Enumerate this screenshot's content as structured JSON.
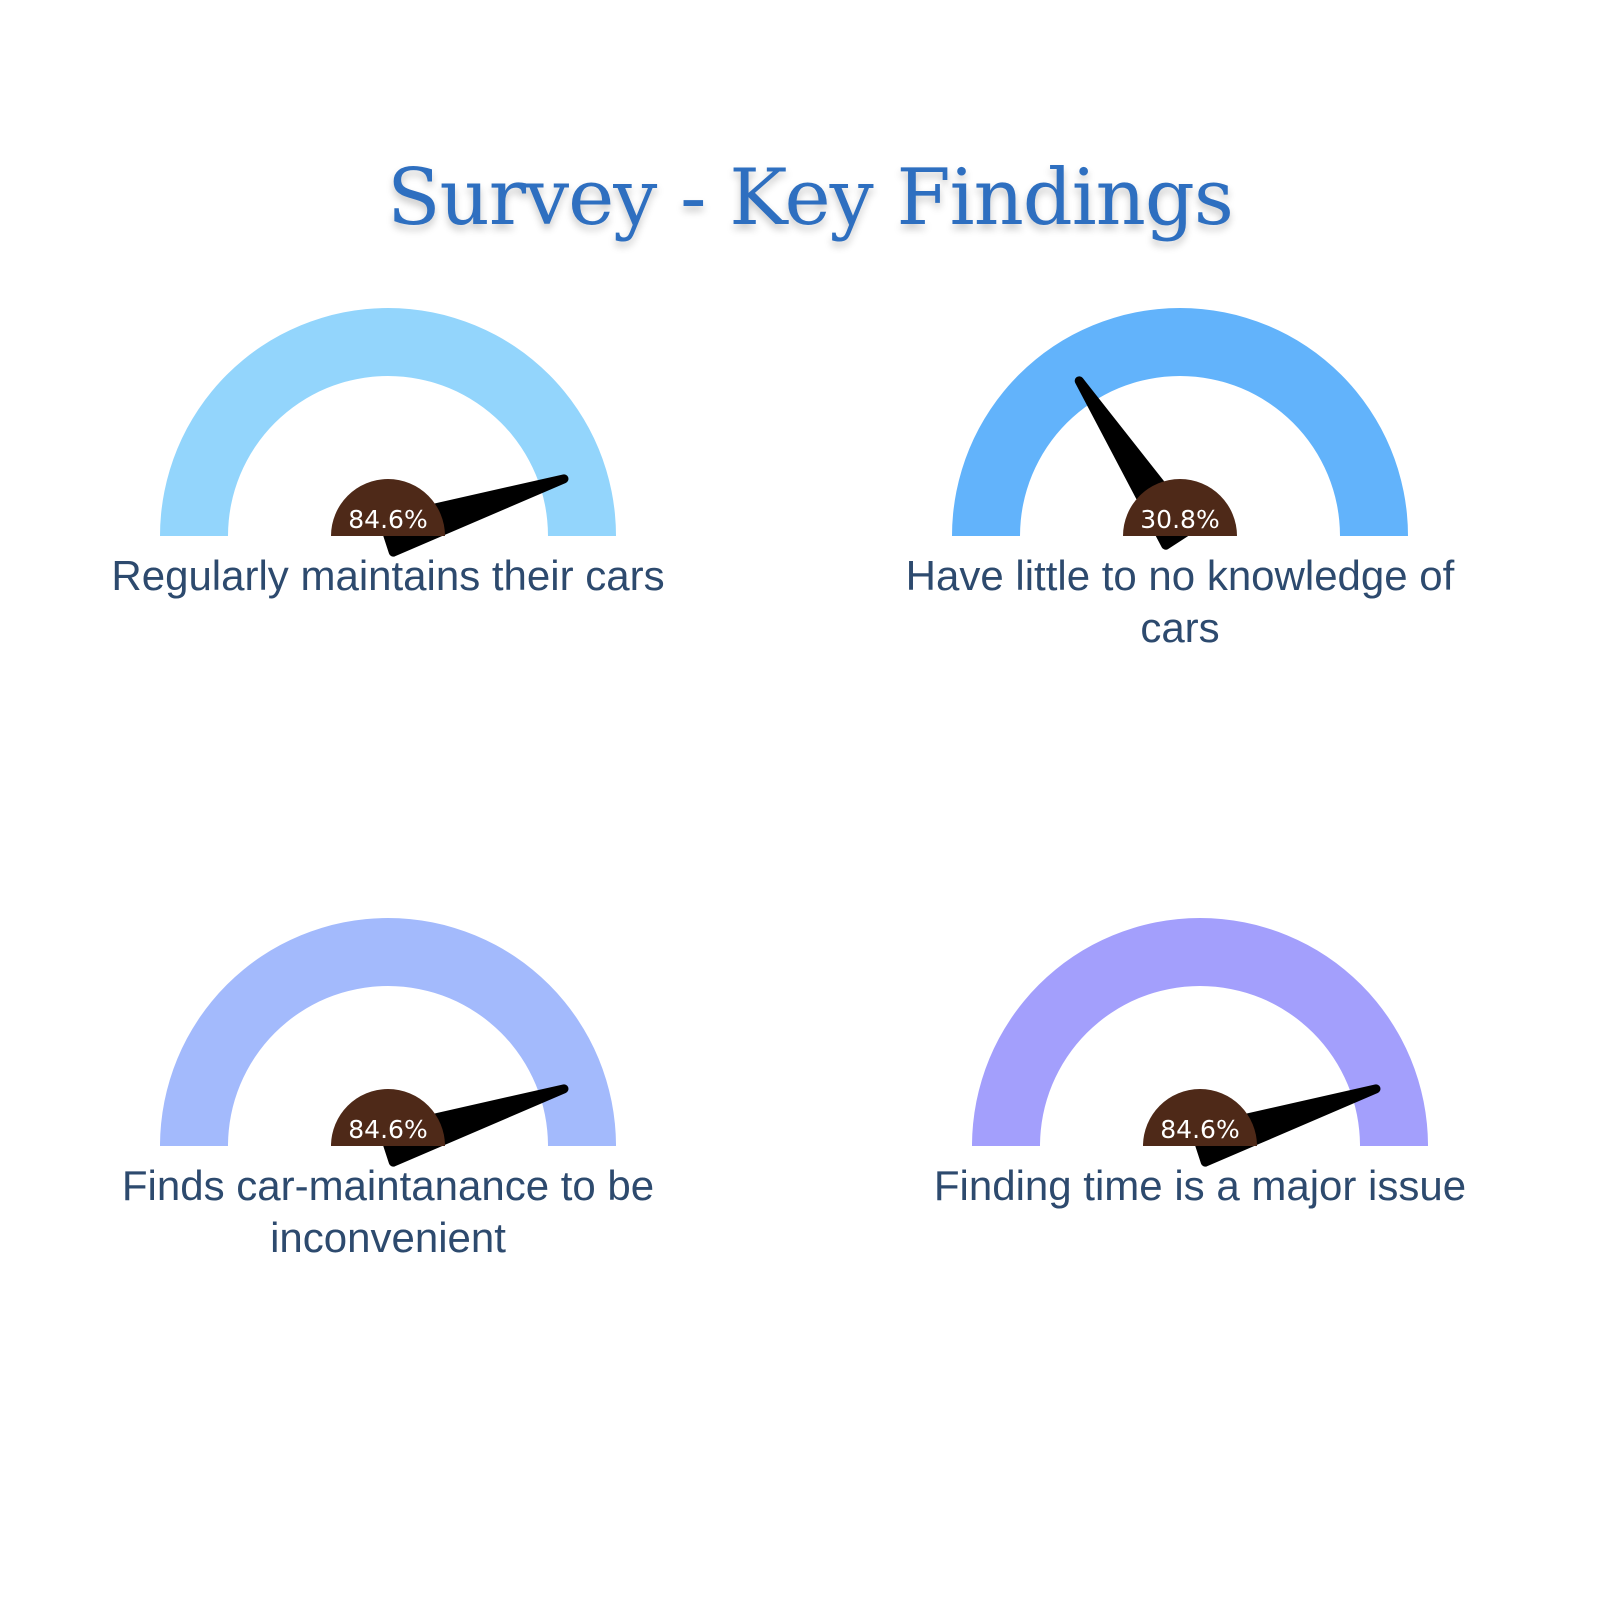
{
  "title": "Survey - Key Findings",
  "chart_data": [
    {
      "type": "gauge",
      "value": 84.6,
      "range": [
        0,
        100
      ],
      "value_label": "84.6%",
      "caption": "Regularly maintains their cars",
      "arc_color": "#93d5fc",
      "needle_angle_deg": 162
    },
    {
      "type": "gauge",
      "value": 30.8,
      "range": [
        0,
        100
      ],
      "value_label": "30.8%",
      "caption": "Have little to no knowledge of cars",
      "arc_color": "#62b3fb",
      "needle_angle_deg": 57
    },
    {
      "type": "gauge",
      "value": 84.6,
      "range": [
        0,
        100
      ],
      "value_label": "84.6%",
      "caption": "Finds car-maintanance to be inconvenient",
      "arc_color": "#a3bafc",
      "needle_angle_deg": 162
    },
    {
      "type": "gauge",
      "value": 84.6,
      "range": [
        0,
        100
      ],
      "value_label": "84.6%",
      "caption": "Finding time is a major issue",
      "arc_color": "#a39ffc",
      "needle_angle_deg": 162
    }
  ],
  "colors": {
    "title": "#2e6fc0",
    "caption": "#2d4a6e",
    "hub": "#4e2918",
    "needle": "#000000"
  }
}
